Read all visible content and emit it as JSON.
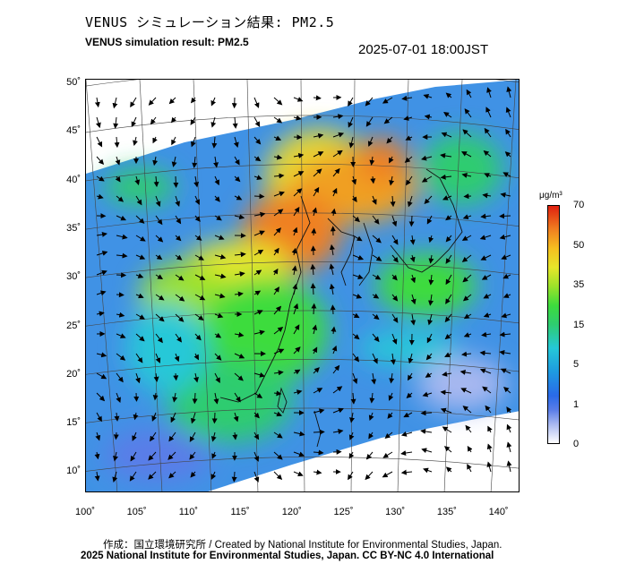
{
  "header": {
    "title_jp": "VENUS シミュレーション結果: PM2.5",
    "title_en": "VENUS simulation result: PM2.5",
    "timestamp": "2025-07-01 18:00JST"
  },
  "map": {
    "y_ticks": [
      "50˚",
      "45˚",
      "40˚",
      "35˚",
      "30˚",
      "25˚",
      "20˚",
      "15˚",
      "10˚"
    ],
    "x_ticks": [
      "100˚",
      "105˚",
      "110˚",
      "115˚",
      "120˚",
      "125˚",
      "130˚",
      "135˚",
      "140˚"
    ]
  },
  "colorbar": {
    "unit": "μg/m³",
    "labels": [
      "70",
      "50",
      "35",
      "15",
      "5",
      "1",
      "0"
    ]
  },
  "footer": {
    "credit": "作成：国立環境研究所 / Created by National Institute for Environmental Studies, Japan.",
    "license": "2025 National Institute for Environmental Studies, Japan. CC BY-NC 4.0 International"
  }
}
